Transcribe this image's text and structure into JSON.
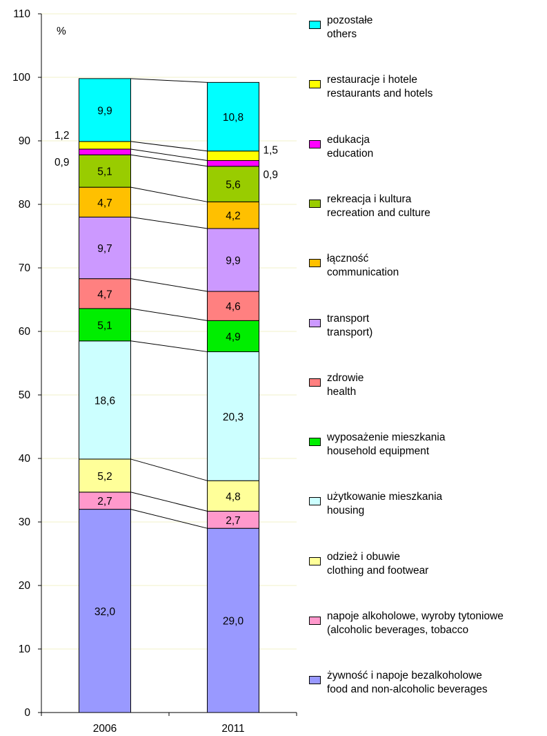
{
  "chart_data": {
    "type": "bar",
    "stacked": true,
    "unit_label": "%",
    "categories": [
      "2006",
      "2011"
    ],
    "ylim": [
      0,
      110
    ],
    "yticks": [
      0,
      10,
      20,
      30,
      40,
      50,
      60,
      70,
      80,
      90,
      100,
      110
    ],
    "grid": true,
    "legend_position": "right",
    "series": [
      {
        "name_pl": "żywność i napoje bezalkoholowe",
        "name_en": "food and non-alcoholic beverages",
        "color": "#9999ff",
        "values": [
          32.0,
          29.0
        ],
        "labels": [
          "32,0",
          "29,0"
        ]
      },
      {
        "name_pl": "napoje alkoholowe, wyroby tytoniowe",
        "name_en": "(alcoholic beverages, tobacco",
        "color": "#ff99cc",
        "values": [
          2.7,
          2.7
        ],
        "labels": [
          "2,7",
          "2,7"
        ]
      },
      {
        "name_pl": "odzież i obuwie",
        "name_en": "clothing and footwear",
        "color": "#ffff99",
        "values": [
          5.2,
          4.8
        ],
        "labels": [
          "5,2",
          "4,8"
        ]
      },
      {
        "name_pl": "użytkowanie mieszkania",
        "name_en": "housing",
        "color": "#ccffff",
        "values": [
          18.6,
          20.3
        ],
        "labels": [
          "18,6",
          "20,3"
        ]
      },
      {
        "name_pl": "wyposażenie mieszkania",
        "name_en": "household equipment",
        "color": "#00ee00",
        "values": [
          5.1,
          4.9
        ],
        "labels": [
          "5,1",
          "4,9"
        ]
      },
      {
        "name_pl": "zdrowie",
        "name_en": "health",
        "color": "#ff8080",
        "values": [
          4.7,
          4.6
        ],
        "labels": [
          "4,7",
          "4,6"
        ]
      },
      {
        "name_pl": "transport",
        "name_en": "transport)",
        "color": "#cc99ff",
        "values": [
          9.7,
          9.9
        ],
        "labels": [
          "9,7",
          "9,9"
        ]
      },
      {
        "name_pl": "łączność",
        "name_en": "communication",
        "color": "#ffc000",
        "values": [
          4.7,
          4.2
        ],
        "labels": [
          "4,7",
          "4,2"
        ]
      },
      {
        "name_pl": "rekreacja i kultura",
        "name_en": "recreation and culture",
        "color": "#99cc00",
        "values": [
          5.1,
          5.6
        ],
        "labels": [
          "5,1",
          "5,6"
        ]
      },
      {
        "name_pl": "edukacja",
        "name_en": "education",
        "color": "#ff00ff",
        "values": [
          0.9,
          0.9
        ],
        "labels": [
          "0,9",
          "0,9"
        ],
        "label_outside": true
      },
      {
        "name_pl": "restauracje i hotele",
        "name_en": "restaurants and hotels",
        "color": "#ffff00",
        "values": [
          1.2,
          1.5
        ],
        "labels": [
          "1,2",
          "1,5"
        ],
        "label_outside": true
      },
      {
        "name_pl": "pozostałe",
        "name_en": "others",
        "color": "#00ffff",
        "values": [
          9.9,
          10.8
        ],
        "labels": [
          "9,9",
          "10,8"
        ]
      }
    ]
  }
}
